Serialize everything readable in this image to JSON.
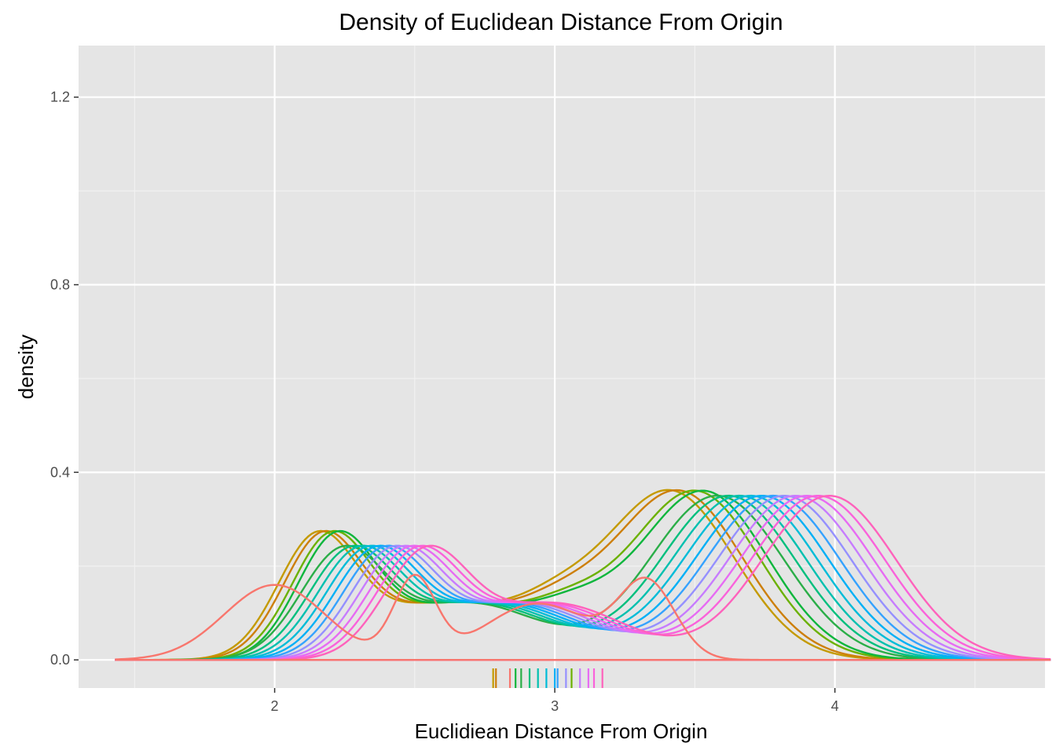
{
  "chart_data": {
    "type": "line",
    "title": "Density of Euclidean Distance From Origin",
    "xlabel": "Euclidiean Distance From Origin",
    "ylabel": "density",
    "xlim": [
      1.3,
      4.75
    ],
    "ylim": [
      -0.06,
      1.31
    ],
    "x_ticks": [
      {
        "value": 2,
        "label": "2"
      },
      {
        "value": 3,
        "label": "3"
      },
      {
        "value": 4,
        "label": "4"
      }
    ],
    "y_ticks": [
      {
        "value": 0.0,
        "label": "0.0"
      },
      {
        "value": 0.4,
        "label": "0.4"
      },
      {
        "value": 0.8,
        "label": "0.8"
      },
      {
        "value": 1.2,
        "label": "1.2"
      }
    ],
    "x_minor_gridlines": [
      1.5,
      2.5,
      3.5,
      4.5
    ],
    "y_minor_gridlines": [
      0.2,
      0.6,
      1.0
    ],
    "x_domain": [
      1.43,
      4.77
    ],
    "background": "#e5e5e5",
    "grid": true,
    "legend": "none",
    "curve_colors": [
      "#F8766D",
      "#CD9600",
      "#7CAE00",
      "#00BE67",
      "#00BFC4",
      "#00A9FF",
      "#C77CFF",
      "#FF61CC"
    ],
    "series": [
      {
        "color": "#F8766D",
        "components": [
          [
            0.17,
            2.5,
            0.075
          ],
          [
            0.16,
            3.33,
            0.1
          ],
          [
            0.16,
            2.0,
            0.18
          ],
          [
            0.12,
            2.94,
            0.19
          ]
        ],
        "rug": 2.84
      },
      {
        "color": "#C49A00",
        "components": [
          [
            0.25,
            2.15,
            0.14
          ],
          [
            0.36,
            3.41,
            0.23
          ],
          [
            0.12,
            2.6,
            0.25
          ],
          [
            0.07,
            3.0,
            0.15
          ]
        ],
        "rug": 2.78
      },
      {
        "color": "#CD7F0A",
        "components": [
          [
            0.25,
            2.17,
            0.14
          ],
          [
            0.36,
            3.44,
            0.23
          ],
          [
            0.12,
            2.62,
            0.25
          ],
          [
            0.07,
            3.02,
            0.15
          ]
        ],
        "rug": 2.79
      },
      {
        "color": "#6BB100",
        "components": [
          [
            0.25,
            2.2,
            0.14
          ],
          [
            0.36,
            3.5,
            0.23
          ],
          [
            0.12,
            2.65,
            0.25
          ],
          [
            0.07,
            3.05,
            0.15
          ]
        ],
        "rug": 3.06
      },
      {
        "color": "#0EB63D",
        "components": [
          [
            0.25,
            2.22,
            0.14
          ],
          [
            0.36,
            3.53,
            0.23
          ],
          [
            0.12,
            2.67,
            0.25
          ],
          [
            0.07,
            3.07,
            0.15
          ]
        ],
        "rug": 2.86
      },
      {
        "color": "#2BAE48",
        "components": [
          [
            0.22,
            2.24,
            0.15
          ],
          [
            0.35,
            3.58,
            0.24
          ],
          [
            0.12,
            2.7,
            0.25
          ]
        ],
        "rug": 2.88
      },
      {
        "color": "#00BF7D",
        "components": [
          [
            0.22,
            2.27,
            0.15
          ],
          [
            0.35,
            3.62,
            0.24
          ],
          [
            0.12,
            2.73,
            0.25
          ]
        ],
        "rug": 2.91
      },
      {
        "color": "#00C0AF",
        "components": [
          [
            0.22,
            2.3,
            0.15
          ],
          [
            0.35,
            3.66,
            0.24
          ],
          [
            0.12,
            2.76,
            0.25
          ]
        ],
        "rug": 2.94
      },
      {
        "color": "#00BCD8",
        "components": [
          [
            0.22,
            2.33,
            0.15
          ],
          [
            0.35,
            3.7,
            0.24
          ],
          [
            0.12,
            2.79,
            0.25
          ]
        ],
        "rug": 2.97
      },
      {
        "color": "#00B0F6",
        "components": [
          [
            0.22,
            2.36,
            0.15
          ],
          [
            0.35,
            3.74,
            0.24
          ],
          [
            0.12,
            2.82,
            0.25
          ]
        ],
        "rug": 3.0
      },
      {
        "color": "#35A2FF",
        "components": [
          [
            0.22,
            2.39,
            0.15
          ],
          [
            0.35,
            3.78,
            0.24
          ],
          [
            0.12,
            2.85,
            0.25
          ]
        ],
        "rug": 3.01
      },
      {
        "color": "#9590FF",
        "components": [
          [
            0.22,
            2.42,
            0.15
          ],
          [
            0.35,
            3.82,
            0.24
          ],
          [
            0.12,
            2.88,
            0.25
          ]
        ],
        "rug": 3.04
      },
      {
        "color": "#C77CFF",
        "components": [
          [
            0.22,
            2.45,
            0.15
          ],
          [
            0.35,
            3.86,
            0.24
          ],
          [
            0.12,
            2.91,
            0.25
          ]
        ],
        "rug": 3.09
      },
      {
        "color": "#E76BF3",
        "components": [
          [
            0.22,
            2.48,
            0.15
          ],
          [
            0.35,
            3.9,
            0.24
          ],
          [
            0.12,
            2.94,
            0.25
          ]
        ],
        "rug": 3.12
      },
      {
        "color": "#FA62DB",
        "components": [
          [
            0.22,
            2.51,
            0.15
          ],
          [
            0.35,
            3.94,
            0.24
          ],
          [
            0.12,
            2.97,
            0.25
          ]
        ],
        "rug": 3.14
      },
      {
        "color": "#FF62BC",
        "components": [
          [
            0.22,
            2.54,
            0.15
          ],
          [
            0.35,
            3.98,
            0.24
          ],
          [
            0.12,
            3.0,
            0.25
          ]
        ],
        "rug": 3.17
      }
    ]
  }
}
